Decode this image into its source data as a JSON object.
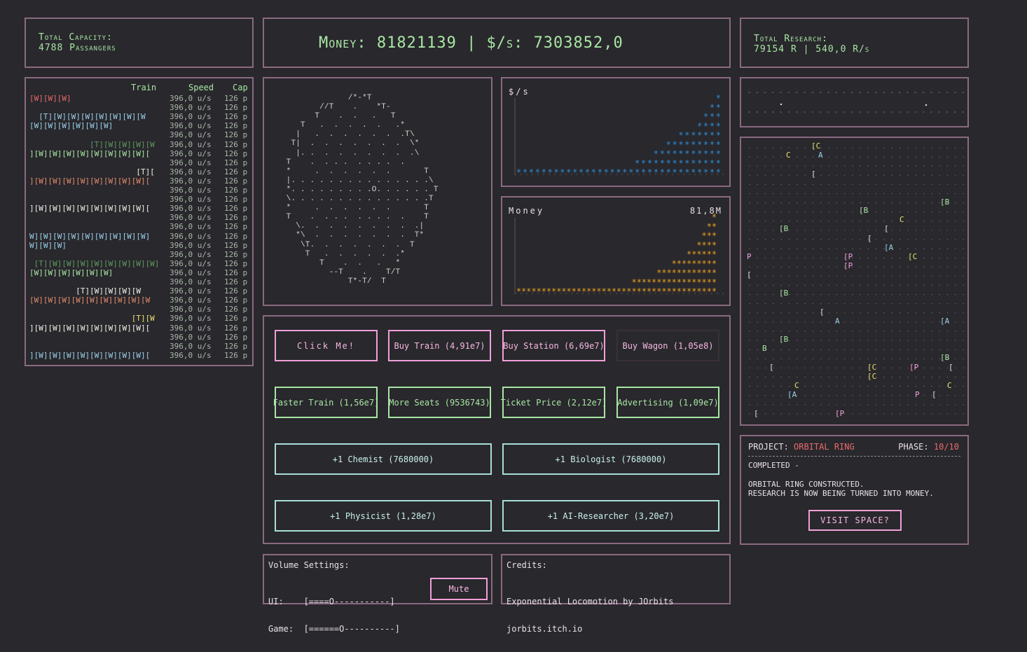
{
  "capacity": {
    "label": "Total Capacity:",
    "value": "4788 Passangers"
  },
  "money_bar": {
    "text": "Money: 81821139 | $/s: 7303852,0"
  },
  "research": {
    "label": "Total Research:",
    "value": "79154 R | 540,0 R/s"
  },
  "trains": {
    "headers": {
      "train": "Train",
      "speed": "Speed",
      "cap": "Cap"
    },
    "speed": "396,0 u/s",
    "cap": "126 p",
    "rows": [
      {
        "w": "[W][W][W]",
        "color": "#e86a6a"
      },
      {
        "w": "",
        "color": "#a8e6a3"
      },
      {
        "w": "  [T][W][W][W][W][W][W][W",
        "color": "#9ad0e8"
      },
      {
        "w": "[W][W][W][W][W][W]",
        "color": "#9ad0e8"
      },
      {
        "w": "",
        "color": "#a8e6a3"
      },
      {
        "w": "             [T][W][W][W][W",
        "color": "#5e9a5e"
      },
      {
        "w": "][W][W][W][W][W][W][W][W][",
        "color": "#a8e6a3"
      },
      {
        "w": "",
        "color": "#a8e6a3"
      },
      {
        "w": "                       [T][",
        "color": "#f0f0e8"
      },
      {
        "w": "][W][W][W][W][W][W][W][W][",
        "color": "#e08a6a"
      },
      {
        "w": "",
        "color": "#a8e6a3"
      },
      {
        "w": "",
        "color": "#a8e6a3"
      },
      {
        "w": "][W][W][W][W][W][W][W][W][",
        "color": "#f0f0e8"
      },
      {
        "w": "",
        "color": "#a8e6a3"
      },
      {
        "w": "",
        "color": "#a8e6a3"
      },
      {
        "w": "W][W][W][W][W][W][W][W][W]",
        "color": "#9ad0e8"
      },
      {
        "w": "W][W][W]",
        "color": "#9ad0e8"
      },
      {
        "w": "",
        "color": "#a8e6a3"
      },
      {
        "w": " [T][W][W][W][W][W][W][W][W]",
        "color": "#5e9a5e"
      },
      {
        "w": "[W][W][W][W][W][W]",
        "color": "#a8e6a3"
      },
      {
        "w": "",
        "color": "#a8e6a3"
      },
      {
        "w": "          [T][W][W][W][W",
        "color": "#f0f0e8"
      },
      {
        "w": "[W][W][W][W][W][W][W][W][W",
        "color": "#e08a6a"
      },
      {
        "w": "",
        "color": "#a8e6a3"
      },
      {
        "w": "                      [T][W",
        "color": "#e8e070"
      },
      {
        "w": "][W][W][W][W][W][W][W][W][",
        "color": "#f0f0e8"
      },
      {
        "w": "",
        "color": "#a8e6a3"
      },
      {
        "w": "",
        "color": "#a8e6a3"
      },
      {
        "w": "][W][W][W][W][W][W][W][W][",
        "color": "#9ad0e8"
      }
    ]
  },
  "globe": {
    "ascii": "               /*-*T\n         //T    .    *T-\n        T    .  .   .   T\n     T   .  .  .  .  .   .*\n    |   .  .  .  .  .  .  .T\\\n   T|  .  .  .  .  .  .  .  \\*\n    |. .  .  .  .  .  .  .  .\\\n  T    .  . . .  . . . .  .\n  *     .  .  .  .  .  .       T\n  |. . . . . . . . . . . . . . .\\\n  *. . . . . . . . .O. . . . . . T\n  \\. . . . . . . . . . . . . . .T\n  *     .  .  .  .  .  .       T\n  T    .  . . .  . . . .  .    T\n    \\.  .  .  .  .  .  .  .  .|\n    *\\  .  .  .  .  .  .  .  T*\n     \\T.  .  .  .  .  .  .  T\n      T   .  .  .  .  .  .*\n         T    .  .   .   *\n           --T    .    T/T\n               T*-T/  T"
  },
  "rate_chart": {
    "label": "$/s",
    "chart_data": {
      "type": "scatter",
      "title": "$/s",
      "series": [
        {
          "values": [
            0,
            0,
            0,
            0,
            0,
            0,
            0,
            0,
            0,
            0,
            0,
            0,
            0,
            0,
            0,
            0,
            0,
            0,
            0,
            1,
            1,
            1,
            2,
            2,
            3,
            3,
            4,
            4,
            4,
            5,
            6,
            7,
            8
          ]
        }
      ],
      "color": "#2e8fd6"
    }
  },
  "money_chart": {
    "label": "Money",
    "value_label": "81,8M",
    "chart_data": {
      "type": "scatter",
      "title": "Money",
      "series": [
        {
          "values": [
            0,
            0,
            0,
            0,
            0,
            0,
            0,
            0,
            0,
            0,
            0,
            0,
            0,
            0,
            0,
            0,
            0,
            0,
            0,
            0,
            0,
            0,
            0,
            1,
            1,
            1,
            1,
            1,
            2,
            2,
            2,
            3,
            3,
            3,
            4,
            4,
            5,
            6,
            7,
            8
          ]
        }
      ],
      "color": "#e8a020"
    }
  },
  "buttons": {
    "click": "Click Me!",
    "buy_train": "Buy Train (4,91e7)",
    "buy_station": "Buy Station (6,69e7)",
    "buy_wagon": "Buy Wagon (1,05e8)",
    "faster_train": "Faster Train (1,56e7)",
    "more_seats": "More Seats (9536743)",
    "ticket_price": "Ticket Price (2,12e7)",
    "advertising": "Advertising (1,09e7)",
    "chemist": "+1 Chemist (7680000)",
    "biologist": "+1 Biologist (7680000)",
    "physicist": "+1 Physicist (1,28e7)",
    "ai_researcher": "+1 AI-Researcher (3,20e7)"
  },
  "map": {
    "markers": [
      {
        "t": "[C",
        "c": "#e8e070"
      },
      {
        "t": "C",
        "c": "#e8e070"
      },
      {
        "t": "A",
        "c": "#9ad0e8"
      },
      {
        "t": "[",
        "c": "#e8e0e8"
      },
      {
        "t": "[B",
        "c": "#a8e6a3"
      },
      {
        "t": "[B",
        "c": "#a8e6a3"
      },
      {
        "t": "C",
        "c": "#e8e070"
      },
      {
        "t": "[B",
        "c": "#a8e6a3"
      },
      {
        "t": "[",
        "c": "#e8e0e8"
      },
      {
        "t": "[",
        "c": "#e8e0e8"
      },
      {
        "t": "[A",
        "c": "#9ad0e8"
      },
      {
        "t": "P",
        "c": "#f0a0d8"
      },
      {
        "t": "[P",
        "c": "#f0a0d8"
      },
      {
        "t": "[C",
        "c": "#e8e070"
      },
      {
        "t": "[P",
        "c": "#f0a0d8"
      },
      {
        "t": "[",
        "c": "#e8e0e8"
      },
      {
        "t": "[B",
        "c": "#a8e6a3"
      },
      {
        "t": "[",
        "c": "#e8e0e8"
      },
      {
        "t": "A",
        "c": "#9ad0e8"
      },
      {
        "t": "[A",
        "c": "#9ad0e8"
      },
      {
        "t": "[B",
        "c": "#a8e6a3"
      },
      {
        "t": "B",
        "c": "#a8e6a3"
      },
      {
        "t": "[B",
        "c": "#a8e6a3"
      },
      {
        "t": "[",
        "c": "#e8e0e8"
      },
      {
        "t": "[C",
        "c": "#e8e070"
      },
      {
        "t": "[P",
        "c": "#f0a0d8"
      },
      {
        "t": "[",
        "c": "#e8e0e8"
      },
      {
        "t": "[C",
        "c": "#e8e070"
      },
      {
        "t": "C",
        "c": "#e8e070"
      },
      {
        "t": "C",
        "c": "#e8e070"
      },
      {
        "t": "[A",
        "c": "#9ad0e8"
      },
      {
        "t": "P",
        "c": "#f0a0d8"
      },
      {
        "t": "[",
        "c": "#e8e0e8"
      },
      {
        "t": "[",
        "c": "#e8e0e8"
      },
      {
        "t": "[P",
        "c": "#f0a0d8"
      }
    ]
  },
  "project": {
    "label": "PROJECT:",
    "name": "ORBITAL RING",
    "phase_label": "PHASE:",
    "phase_value": "10/10",
    "completed": "COMPLETED -",
    "desc1": "ORBITAL RING CONSTRUCTED.",
    "desc2": "RESEARCH IS NOW BEING TURNED INTO MONEY.",
    "visit": "VISIT SPACE?",
    "name_color": "#e86a6a"
  },
  "volume": {
    "title": "Volume Settings:",
    "ui": "UI:    [====O-----------]",
    "game": "Game:  [======O----------]",
    "mute": "Mute"
  },
  "credits": {
    "title": "Credits:",
    "line1": "Exponential Locomotion by JOrbits",
    "line2": "jorbits.itch.io"
  }
}
